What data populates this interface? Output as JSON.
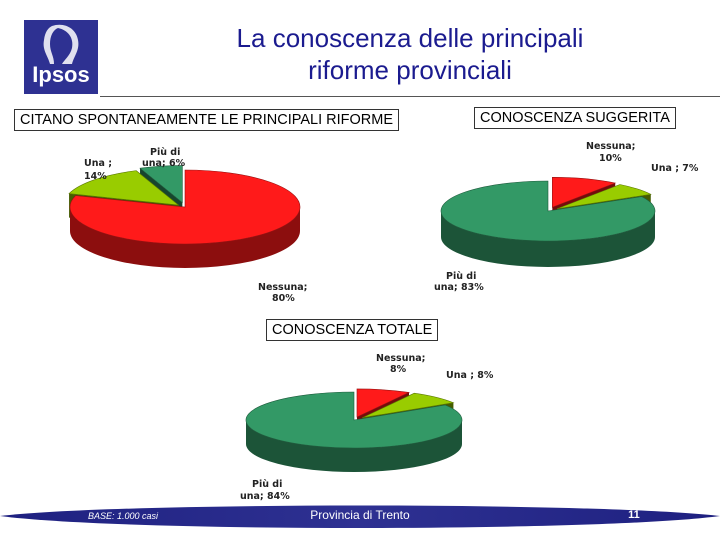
{
  "header": {
    "logo_text": "Ipsos",
    "title_line1": "La conoscenza delle principali",
    "title_line2": "riforme provinciali"
  },
  "chart_data": [
    {
      "type": "pie",
      "title": "CITANO SPONTANEAMENTE LE PRINCIPALI RIFORME",
      "slices": [
        {
          "label": "Nessuna;",
          "value_label": "80%",
          "value": 80,
          "color": "#ff1a1a"
        },
        {
          "label": "Una ;",
          "value_label": "14%",
          "value": 14,
          "color": "#99cc00"
        },
        {
          "label": "Più di",
          "value_label": "una; 6%",
          "value": 6,
          "color": "#339966"
        }
      ]
    },
    {
      "type": "pie",
      "title": "CONOSCENZA SUGGERITA",
      "slices": [
        {
          "label": "Nessuna;",
          "value_label": "10%",
          "value": 10,
          "color": "#ff1a1a"
        },
        {
          "label": "Una ; 7%",
          "value_label": "",
          "value": 7,
          "color": "#99cc00"
        },
        {
          "label": "Più di",
          "value_label": "una; 83%",
          "value": 83,
          "color": "#339966"
        }
      ]
    },
    {
      "type": "pie",
      "title": "CONOSCENZA TOTALE",
      "slices": [
        {
          "label": "Nessuna;",
          "value_label": "8%",
          "value": 8,
          "color": "#ff1a1a"
        },
        {
          "label": "Una ; 8%",
          "value_label": "",
          "value": 8,
          "color": "#99cc00"
        },
        {
          "label": "Più di",
          "value_label": "una; 84%",
          "value": 84,
          "color": "#339966"
        }
      ]
    }
  ],
  "footer": {
    "base": "BASE: 1.000 casi",
    "center": "Provincia di Trento",
    "page": "11"
  },
  "colors": {
    "title": "#1b1b8f",
    "footer": "#2e3192"
  }
}
